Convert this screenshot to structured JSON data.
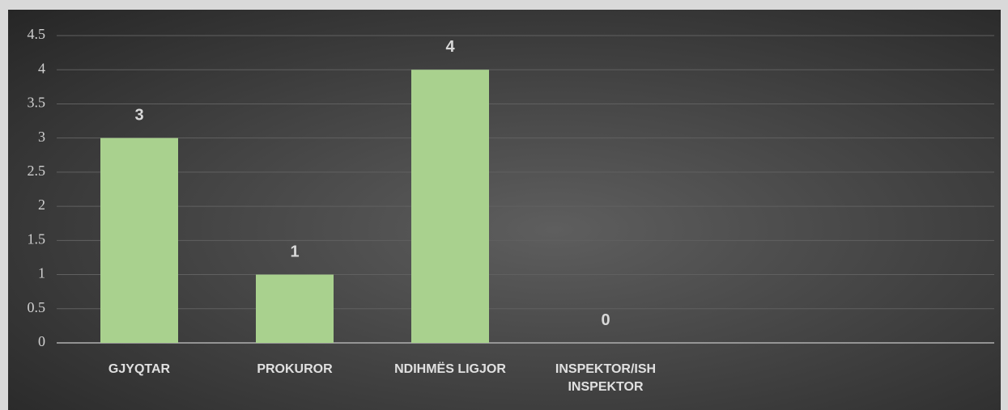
{
  "chart_data": {
    "type": "bar",
    "categories": [
      "GJYQTAR",
      "PROKUROR",
      "NDIHMËS LIGJOR",
      "INSPEKTOR/ISH INSPEKTOR",
      null,
      null
    ],
    "values": [
      3,
      1,
      4,
      0,
      null,
      null
    ],
    "color": "#a9d18e",
    "ylim": [
      0,
      4.5
    ],
    "yticks": [
      0,
      0.5,
      1,
      1.5,
      2,
      2.5,
      3,
      3.5,
      4,
      4.5
    ],
    "grid": true
  }
}
